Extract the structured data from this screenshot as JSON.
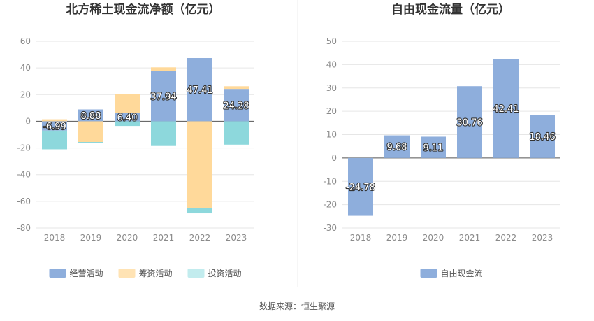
{
  "source_note": "数据来源：恒生聚源",
  "chart_data": [
    {
      "type": "bar",
      "stacked": true,
      "title": "北方稀土现金流净额（亿元）",
      "categories": [
        "2018",
        "2019",
        "2020",
        "2021",
        "2022",
        "2023"
      ],
      "ylim": [
        -80,
        60
      ],
      "yticks": [
        60,
        40,
        20,
        0,
        -20,
        -40,
        -60,
        -80
      ],
      "grid": true,
      "legend_position": "bottom",
      "series": [
        {
          "name": "经营活动",
          "color": "#8eaedc",
          "values": [
            -6.99,
            8.88,
            6.4,
            37.94,
            47.41,
            24.28
          ],
          "labels": [
            "-6.99",
            "8.88",
            "6.40",
            "37.94",
            "47.41",
            "24.28"
          ]
        },
        {
          "name": "筹资活动",
          "color": "#ffd99a",
          "values": [
            1.5,
            -15.5,
            14.0,
            2.5,
            -65.0,
            2.0
          ]
        },
        {
          "name": "投资活动",
          "color": "#8dd8dc",
          "values": [
            -14.0,
            -1.0,
            -3.5,
            -18.5,
            -4.0,
            -17.5
          ]
        }
      ],
      "legend_colors": [
        "#8eaedc",
        "#ffe3b4",
        "#c2ecee"
      ]
    },
    {
      "type": "bar",
      "title": "自由现金流量（亿元）",
      "categories": [
        "2018",
        "2019",
        "2020",
        "2021",
        "2022",
        "2023"
      ],
      "ylim": [
        -30,
        50
      ],
      "yticks": [
        50,
        40,
        30,
        20,
        10,
        0,
        -10,
        -20,
        -30
      ],
      "grid": true,
      "legend_position": "bottom",
      "series": [
        {
          "name": "自由现金流",
          "color": "#8eaedc",
          "values": [
            -24.78,
            9.68,
            9.11,
            30.76,
            42.41,
            18.46
          ],
          "labels": [
            "-24.78",
            "9.68",
            "9.11",
            "30.76",
            "42.41",
            "18.46"
          ]
        }
      ],
      "legend_colors": [
        "#8eaedc"
      ]
    }
  ]
}
